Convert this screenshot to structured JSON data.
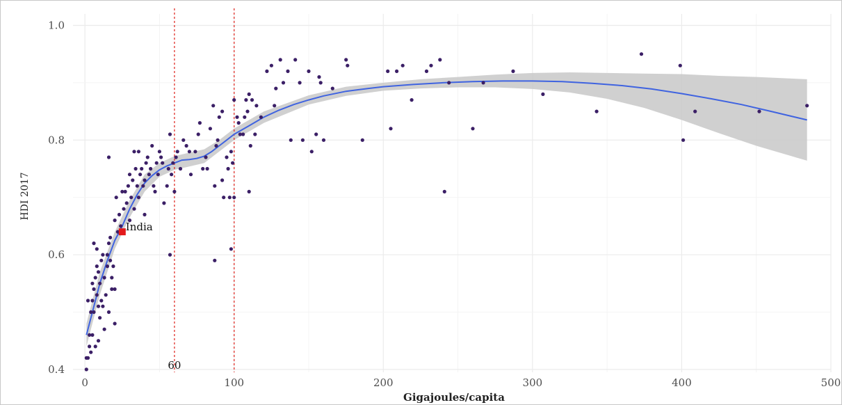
{
  "chart_data": {
    "type": "scatter",
    "xlabel": "Gigajoules/capita",
    "ylabel": "HDI 2017",
    "xlim": [
      -8,
      500
    ],
    "ylim": [
      0.395,
      1.02
    ],
    "x_ticks": [
      0,
      100,
      200,
      300,
      400,
      500
    ],
    "y_ticks": [
      0.4,
      0.6,
      0.8,
      1.0
    ],
    "y_tick_labels": [
      "0.4",
      "0.6",
      "0.8",
      "1.0"
    ],
    "grid": true,
    "reference_lines": [
      {
        "x": 60,
        "label": "60",
        "color": "#e0302a"
      },
      {
        "x": 100,
        "label": "",
        "color": "#e0302a"
      }
    ],
    "highlight": {
      "x": 25,
      "y": 0.64,
      "label": "India",
      "color": "#e31a1c"
    },
    "point_color": "#3b1f66",
    "smooth_color": "#3f63e0",
    "band_color": "#c8c8c8",
    "points": [
      [
        1,
        0.4
      ],
      [
        1,
        0.42
      ],
      [
        2,
        0.42
      ],
      [
        3,
        0.46
      ],
      [
        3,
        0.44
      ],
      [
        4,
        0.43
      ],
      [
        2,
        0.52
      ],
      [
        4,
        0.5
      ],
      [
        5,
        0.46
      ],
      [
        5,
        0.52
      ],
      [
        5,
        0.55
      ],
      [
        6,
        0.54
      ],
      [
        6,
        0.62
      ],
      [
        6,
        0.5
      ],
      [
        7,
        0.44
      ],
      [
        7,
        0.56
      ],
      [
        8,
        0.53
      ],
      [
        8,
        0.61
      ],
      [
        8,
        0.58
      ],
      [
        9,
        0.45
      ],
      [
        9,
        0.51
      ],
      [
        9,
        0.57
      ],
      [
        10,
        0.55
      ],
      [
        10,
        0.49
      ],
      [
        11,
        0.59
      ],
      [
        11,
        0.52
      ],
      [
        12,
        0.6
      ],
      [
        12,
        0.51
      ],
      [
        13,
        0.56
      ],
      [
        13,
        0.47
      ],
      [
        14,
        0.53
      ],
      [
        15,
        0.6
      ],
      [
        15,
        0.58
      ],
      [
        16,
        0.62
      ],
      [
        16,
        0.5
      ],
      [
        17,
        0.59
      ],
      [
        17,
        0.63
      ],
      [
        18,
        0.56
      ],
      [
        18,
        0.54
      ],
      [
        19,
        0.58
      ],
      [
        20,
        0.54
      ],
      [
        20,
        0.66
      ],
      [
        20,
        0.48
      ],
      [
        16,
        0.77
      ],
      [
        21,
        0.7
      ],
      [
        22,
        0.64
      ],
      [
        23,
        0.67
      ],
      [
        24,
        0.65
      ],
      [
        25,
        0.71
      ],
      [
        25,
        0.64
      ],
      [
        26,
        0.68
      ],
      [
        27,
        0.71
      ],
      [
        28,
        0.69
      ],
      [
        29,
        0.72
      ],
      [
        30,
        0.66
      ],
      [
        30,
        0.74
      ],
      [
        31,
        0.7
      ],
      [
        32,
        0.73
      ],
      [
        33,
        0.78
      ],
      [
        33,
        0.68
      ],
      [
        34,
        0.75
      ],
      [
        35,
        0.72
      ],
      [
        36,
        0.78
      ],
      [
        36,
        0.7
      ],
      [
        37,
        0.74
      ],
      [
        38,
        0.75
      ],
      [
        39,
        0.72
      ],
      [
        40,
        0.73
      ],
      [
        40,
        0.67
      ],
      [
        41,
        0.76
      ],
      [
        42,
        0.77
      ],
      [
        43,
        0.74
      ],
      [
        44,
        0.75
      ],
      [
        45,
        0.79
      ],
      [
        46,
        0.72
      ],
      [
        47,
        0.71
      ],
      [
        48,
        0.76
      ],
      [
        49,
        0.74
      ],
      [
        50,
        0.78
      ],
      [
        51,
        0.77
      ],
      [
        52,
        0.76
      ],
      [
        53,
        0.69
      ],
      [
        55,
        0.72
      ],
      [
        56,
        0.75
      ],
      [
        57,
        0.81
      ],
      [
        57,
        0.6
      ],
      [
        58,
        0.74
      ],
      [
        59,
        0.76
      ],
      [
        60,
        0.71
      ],
      [
        61,
        0.77
      ],
      [
        62,
        0.78
      ],
      [
        64,
        0.75
      ],
      [
        66,
        0.8
      ],
      [
        68,
        0.79
      ],
      [
        70,
        0.78
      ],
      [
        71,
        0.74
      ],
      [
        74,
        0.78
      ],
      [
        76,
        0.81
      ],
      [
        77,
        0.83
      ],
      [
        79,
        0.75
      ],
      [
        81,
        0.77
      ],
      [
        82,
        0.75
      ],
      [
        84,
        0.82
      ],
      [
        86,
        0.86
      ],
      [
        87,
        0.72
      ],
      [
        87,
        0.59
      ],
      [
        88,
        0.79
      ],
      [
        89,
        0.8
      ],
      [
        90,
        0.84
      ],
      [
        92,
        0.85
      ],
      [
        92,
        0.73
      ],
      [
        93,
        0.7
      ],
      [
        95,
        0.77
      ],
      [
        96,
        0.75
      ],
      [
        97,
        0.7
      ],
      [
        98,
        0.78
      ],
      [
        98,
        0.61
      ],
      [
        99,
        0.76
      ],
      [
        100,
        0.87
      ],
      [
        100,
        0.7
      ],
      [
        102,
        0.84
      ],
      [
        103,
        0.83
      ],
      [
        104,
        0.81
      ],
      [
        106,
        0.81
      ],
      [
        107,
        0.84
      ],
      [
        108,
        0.87
      ],
      [
        109,
        0.85
      ],
      [
        110,
        0.71
      ],
      [
        110,
        0.88
      ],
      [
        111,
        0.79
      ],
      [
        112,
        0.87
      ],
      [
        114,
        0.81
      ],
      [
        115,
        0.86
      ],
      [
        118,
        0.84
      ],
      [
        122,
        0.92
      ],
      [
        125,
        0.93
      ],
      [
        127,
        0.86
      ],
      [
        128,
        0.89
      ],
      [
        131,
        0.94
      ],
      [
        133,
        0.9
      ],
      [
        136,
        0.92
      ],
      [
        138,
        0.8
      ],
      [
        141,
        0.94
      ],
      [
        144,
        0.9
      ],
      [
        146,
        0.8
      ],
      [
        150,
        0.92
      ],
      [
        152,
        0.78
      ],
      [
        155,
        0.81
      ],
      [
        157,
        0.91
      ],
      [
        158,
        0.9
      ],
      [
        160,
        0.8
      ],
      [
        166,
        0.89
      ],
      [
        175,
        0.94
      ],
      [
        176,
        0.93
      ],
      [
        186,
        0.8
      ],
      [
        203,
        0.92
      ],
      [
        205,
        0.82
      ],
      [
        209,
        0.92
      ],
      [
        213,
        0.93
      ],
      [
        219,
        0.87
      ],
      [
        229,
        0.92
      ],
      [
        232,
        0.93
      ],
      [
        238,
        0.94
      ],
      [
        241,
        0.71
      ],
      [
        244,
        0.9
      ],
      [
        260,
        0.82
      ],
      [
        267,
        0.9
      ],
      [
        287,
        0.92
      ],
      [
        307,
        0.88
      ],
      [
        343,
        0.85
      ],
      [
        373,
        0.95
      ],
      [
        399,
        0.93
      ],
      [
        401,
        0.8
      ],
      [
        409,
        0.85
      ],
      [
        452,
        0.85
      ],
      [
        484,
        0.86
      ]
    ],
    "smooth": [
      [
        1,
        0.46
      ],
      [
        5,
        0.5
      ],
      [
        10,
        0.55
      ],
      [
        15,
        0.59
      ],
      [
        20,
        0.625
      ],
      [
        25,
        0.65
      ],
      [
        30,
        0.68
      ],
      [
        35,
        0.705
      ],
      [
        40,
        0.725
      ],
      [
        45,
        0.738
      ],
      [
        50,
        0.748
      ],
      [
        55,
        0.755
      ],
      [
        60,
        0.76
      ],
      [
        65,
        0.765
      ],
      [
        70,
        0.766
      ],
      [
        75,
        0.768
      ],
      [
        80,
        0.772
      ],
      [
        85,
        0.78
      ],
      [
        90,
        0.79
      ],
      [
        95,
        0.8
      ],
      [
        100,
        0.81
      ],
      [
        110,
        0.825
      ],
      [
        120,
        0.84
      ],
      [
        130,
        0.852
      ],
      [
        140,
        0.862
      ],
      [
        150,
        0.87
      ],
      [
        160,
        0.877
      ],
      [
        175,
        0.885
      ],
      [
        190,
        0.89
      ],
      [
        200,
        0.893
      ],
      [
        220,
        0.897
      ],
      [
        240,
        0.9
      ],
      [
        260,
        0.902
      ],
      [
        280,
        0.903
      ],
      [
        300,
        0.903
      ],
      [
        320,
        0.902
      ],
      [
        340,
        0.899
      ],
      [
        360,
        0.895
      ],
      [
        380,
        0.889
      ],
      [
        400,
        0.881
      ],
      [
        420,
        0.872
      ],
      [
        440,
        0.862
      ],
      [
        460,
        0.85
      ],
      [
        484,
        0.835
      ]
    ],
    "band_upper": [
      [
        1,
        0.48
      ],
      [
        10,
        0.57
      ],
      [
        20,
        0.64
      ],
      [
        30,
        0.695
      ],
      [
        40,
        0.74
      ],
      [
        50,
        0.76
      ],
      [
        60,
        0.772
      ],
      [
        70,
        0.778
      ],
      [
        80,
        0.784
      ],
      [
        90,
        0.8
      ],
      [
        100,
        0.82
      ],
      [
        120,
        0.85
      ],
      [
        150,
        0.878
      ],
      [
        175,
        0.893
      ],
      [
        200,
        0.9
      ],
      [
        225,
        0.906
      ],
      [
        250,
        0.91
      ],
      [
        275,
        0.914
      ],
      [
        300,
        0.917
      ],
      [
        325,
        0.918
      ],
      [
        350,
        0.917
      ],
      [
        375,
        0.916
      ],
      [
        400,
        0.915
      ],
      [
        425,
        0.912
      ],
      [
        450,
        0.91
      ],
      [
        484,
        0.906
      ]
    ],
    "band_lower": [
      [
        1,
        0.44
      ],
      [
        10,
        0.53
      ],
      [
        20,
        0.61
      ],
      [
        30,
        0.665
      ],
      [
        40,
        0.71
      ],
      [
        50,
        0.736
      ],
      [
        60,
        0.748
      ],
      [
        70,
        0.754
      ],
      [
        80,
        0.76
      ],
      [
        90,
        0.78
      ],
      [
        100,
        0.8
      ],
      [
        120,
        0.83
      ],
      [
        150,
        0.862
      ],
      [
        175,
        0.877
      ],
      [
        200,
        0.886
      ],
      [
        225,
        0.89
      ],
      [
        250,
        0.892
      ],
      [
        275,
        0.892
      ],
      [
        300,
        0.889
      ],
      [
        325,
        0.883
      ],
      [
        350,
        0.872
      ],
      [
        375,
        0.856
      ],
      [
        400,
        0.835
      ],
      [
        425,
        0.812
      ],
      [
        450,
        0.79
      ],
      [
        484,
        0.764
      ]
    ]
  }
}
